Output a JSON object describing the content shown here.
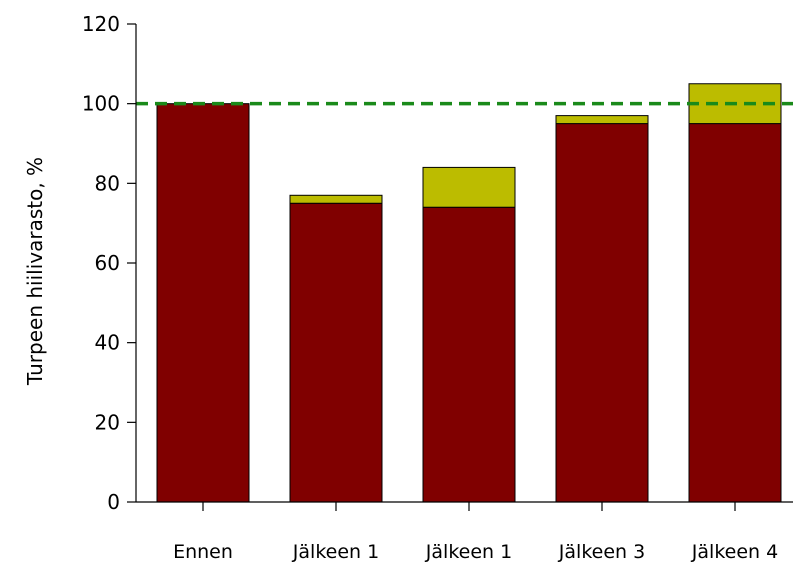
{
  "chart_data": {
    "type": "bar",
    "stacked": true,
    "title": "",
    "xlabel": "",
    "ylabel": "Turpeen hiilivarasto, %",
    "categories": [
      "Ennen",
      "Jälkeen 1",
      "Jälkeen 1",
      "Jälkeen 3",
      "Jälkeen 4"
    ],
    "series": [
      {
        "values": [
          100,
          75,
          74,
          95,
          95
        ],
        "color": "#800000"
      },
      {
        "values": [
          0,
          2,
          10,
          2,
          10
        ],
        "color": "#bcbc00"
      }
    ],
    "reference_line": {
      "value": 100,
      "color": "#1a8a1a",
      "style": "dashed"
    },
    "ylim": [
      0,
      120
    ],
    "yticks": [
      0,
      20,
      40,
      60,
      80,
      100,
      120
    ],
    "grid": false,
    "legend": "none"
  }
}
